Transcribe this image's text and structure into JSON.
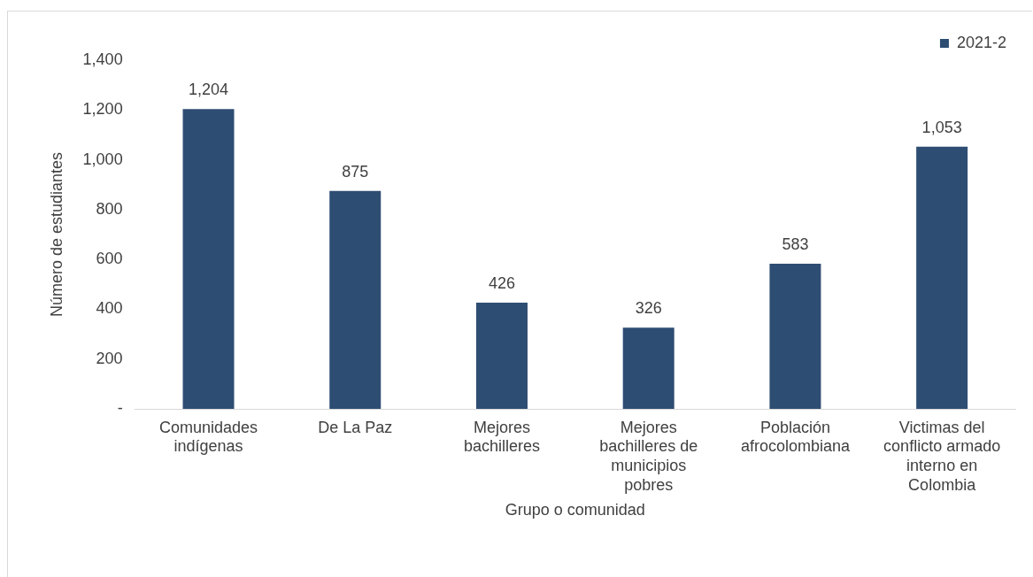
{
  "chart_data": {
    "type": "bar",
    "xlabel": "Grupo o comunidad",
    "ylabel": "Número de estudiantes",
    "categories": [
      "Comunidades indígenas",
      "De La Paz",
      "Mejores bachilleres",
      "Mejores bachilleres de municipios pobres",
      "Población afrocolombiana",
      "Victimas del conflicto armado interno en Colombia"
    ],
    "series": [
      {
        "name": "2021-2",
        "color": "#2e4d73",
        "values": [
          1204,
          875,
          426,
          326,
          583,
          1053
        ],
        "value_labels": [
          "1,204",
          "875",
          "426",
          "326",
          "583",
          "1,053"
        ]
      }
    ],
    "ylim": [
      0,
      1400
    ],
    "yticks": [
      {
        "value": 0,
        "label": "-"
      },
      {
        "value": 200,
        "label": "200"
      },
      {
        "value": 400,
        "label": "400"
      },
      {
        "value": 600,
        "label": "600"
      },
      {
        "value": 800,
        "label": "800"
      },
      {
        "value": 1000,
        "label": "1,000"
      },
      {
        "value": 1200,
        "label": "1,200"
      },
      {
        "value": 1400,
        "label": "1,400"
      }
    ],
    "legend": "top right",
    "grid": false
  }
}
